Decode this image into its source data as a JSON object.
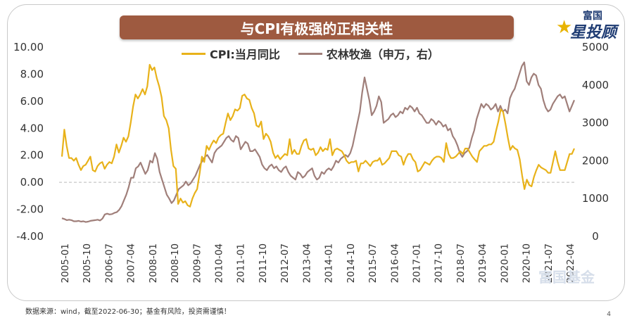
{
  "title": "与CPI有极强的正相关性",
  "logo": {
    "top_text": "富国",
    "main_text": "星投顾"
  },
  "watermark": "富国基金",
  "source_note": "数据来源：wind，截至2022-06-30；基金有风险，投资需谨慎！",
  "page_number": "4",
  "colors": {
    "cpi": "#e8b21a",
    "agri": "#a07f7a",
    "title_bg": "#9e5a40"
  },
  "chart_data": {
    "type": "line",
    "title": "与CPI有极强的正相关性",
    "x_tick_labels": [
      "2005-01",
      "2005-10",
      "2006-07",
      "2007-04",
      "2008-01",
      "2008-10",
      "2009-07",
      "2010-04",
      "2011-01",
      "2011-10",
      "2012-07",
      "2013-04",
      "2014-01",
      "2014-10",
      "2015-07",
      "2016-04",
      "2017-01",
      "2017-10",
      "2018-07",
      "2019-04",
      "2020-01",
      "2020-10",
      "2021-07",
      "2022-04"
    ],
    "y_left": {
      "range": [
        -4,
        10
      ],
      "ticks": [
        "-4.00",
        "-2.00",
        "0.00",
        "2.00",
        "4.00",
        "6.00",
        "8.00",
        "10.00"
      ]
    },
    "y_right": {
      "range": [
        0,
        5000
      ],
      "ticks": [
        "0",
        "1000",
        "2000",
        "3000",
        "4000",
        "5000"
      ]
    },
    "series": [
      {
        "name": "CPI:当月同比",
        "axis": "left",
        "values": [
          1.9,
          3.9,
          2.7,
          1.8,
          1.8,
          1.6,
          1.8,
          1.3,
          0.9,
          1.2,
          1.3,
          1.6,
          1.9,
          0.9,
          0.8,
          1.2,
          1.4,
          1.5,
          1.0,
          1.3,
          1.5,
          1.4,
          1.9,
          2.8,
          2.2,
          2.7,
          3.3,
          3.0,
          3.4,
          4.4,
          5.6,
          6.5,
          6.2,
          6.5,
          6.9,
          6.5,
          7.1,
          8.7,
          8.3,
          8.5,
          7.7,
          7.1,
          6.3,
          4.9,
          4.6,
          4.0,
          2.4,
          1.2,
          1.0,
          -1.6,
          -1.2,
          -1.5,
          -1.4,
          -1.7,
          -1.8,
          -1.2,
          -0.8,
          -0.5,
          0.6,
          1.9,
          1.5,
          2.7,
          2.4,
          2.8,
          3.1,
          2.9,
          3.3,
          3.5,
          3.6,
          4.4,
          5.1,
          4.6,
          4.9,
          5.4,
          5.3,
          5.5,
          6.4,
          6.5,
          6.2,
          6.1,
          5.5,
          5.1,
          4.2,
          4.1,
          4.5,
          3.2,
          3.6,
          3.4,
          3.0,
          2.2,
          1.8,
          2.0,
          1.7,
          1.9,
          2.1,
          2.0,
          3.2,
          2.1,
          2.4,
          2.1,
          2.1,
          2.7,
          3.1,
          3.2,
          2.5,
          2.4,
          2.5,
          2.0,
          2.2,
          2.6,
          2.3,
          2.5,
          2.4,
          3.2,
          2.0,
          2.4,
          2.5,
          2.4,
          2.3,
          2.0,
          1.6,
          1.4,
          1.5,
          1.5,
          1.6,
          0.8,
          1.4,
          1.4,
          1.6,
          1.4,
          1.2,
          1.5,
          1.6,
          1.6,
          1.8,
          1.3,
          1.4,
          1.6,
          1.8,
          2.3,
          2.3,
          2.3,
          2.0,
          1.9,
          1.3,
          1.8,
          2.1,
          2.1,
          1.7,
          1.5,
          0.8,
          0.9,
          1.2,
          1.5,
          1.4,
          1.3,
          1.6,
          1.8,
          1.9,
          1.9,
          1.8,
          1.5,
          2.9,
          2.1,
          1.8,
          1.8,
          1.9,
          2.1,
          2.3,
          2.1,
          2.5,
          2.5,
          2.2,
          1.9,
          1.7,
          1.5,
          2.3,
          2.5,
          2.7,
          2.7,
          2.8,
          2.8,
          3.0,
          3.8,
          4.5,
          5.4,
          5.2,
          4.3,
          3.3,
          2.4,
          2.7,
          2.5,
          2.4,
          1.7,
          0.5,
          -0.5,
          0.2,
          -0.2,
          -0.3,
          0.4,
          0.9,
          1.3,
          1.1,
          1.0,
          0.9,
          0.7,
          0.7,
          1.5,
          2.3,
          1.5,
          0.9,
          0.9,
          0.9,
          1.5,
          2.1,
          2.1,
          2.5
        ]
      },
      {
        "name": "农林牧渔（申万，右）",
        "axis": "right",
        "values": [
          480,
          460,
          430,
          440,
          430,
          400,
          400,
          410,
          390,
          400,
          380,
          390,
          410,
          420,
          430,
          440,
          420,
          470,
          580,
          600,
          580,
          590,
          620,
          640,
          700,
          800,
          950,
          1100,
          1300,
          1550,
          1550,
          1800,
          1850,
          1950,
          1800,
          1650,
          1750,
          2000,
          1950,
          2200,
          2050,
          1700,
          1500,
          1300,
          1100,
          1000,
          880,
          950,
          1100,
          1250,
          1300,
          1350,
          1450,
          1350,
          1400,
          1500,
          1600,
          1750,
          1900,
          2000,
          2100,
          2150,
          2050,
          1950,
          2200,
          2300,
          2350,
          2400,
          2500,
          2600,
          2650,
          2550,
          2500,
          2650,
          2600,
          2300,
          2400,
          2500,
          2450,
          2250,
          2250,
          2300,
          2200,
          2100,
          1900,
          1800,
          1750,
          1850,
          1900,
          1800,
          1850,
          1750,
          1700,
          1800,
          1850,
          1700,
          1600,
          1550,
          1500,
          1700,
          1650,
          1550,
          1600,
          1700,
          1750,
          1800,
          1600,
          1500,
          1550,
          1700,
          1650,
          1750,
          1800,
          1750,
          1850,
          2000,
          1950,
          2050,
          2100,
          2150,
          2100,
          2200,
          2400,
          2700,
          3000,
          3300,
          3800,
          4200,
          3900,
          3600,
          3200,
          3300,
          3450,
          3700,
          3550,
          3000,
          3050,
          3100,
          3200,
          3250,
          3150,
          3200,
          3300,
          3250,
          3400,
          3350,
          3450,
          3400,
          3300,
          3400,
          3250,
          3200,
          3100,
          3000,
          3000,
          3100,
          3050,
          2950,
          3050,
          3000,
          2900,
          2950,
          2800,
          2850,
          2650,
          2550,
          2400,
          2200,
          2100,
          2200,
          2250,
          2350,
          2600,
          2800,
          3100,
          3300,
          3500,
          3400,
          3500,
          3450,
          3350,
          3400,
          3500,
          3300,
          3450,
          3300,
          3350,
          3250,
          3650,
          3800,
          3900,
          4100,
          4300,
          4500,
          4600,
          4100,
          4000,
          4200,
          4300,
          4250,
          4000,
          3900,
          3600,
          3400,
          3300,
          3350,
          3500,
          3600,
          3700,
          3750,
          3650,
          3700,
          3500,
          3300,
          3450,
          3600
        ]
      }
    ]
  }
}
